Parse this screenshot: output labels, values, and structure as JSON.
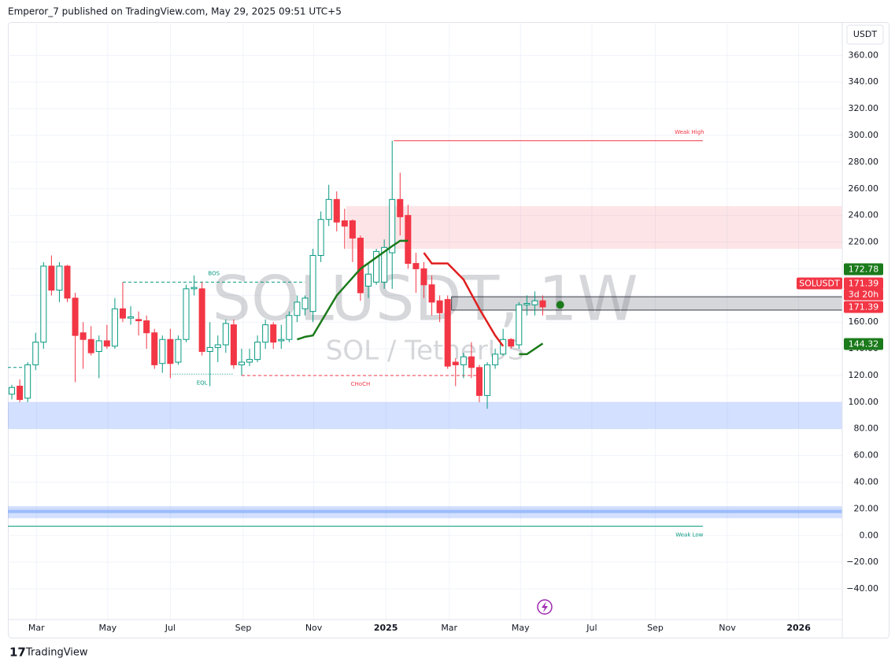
{
  "header": "Emperor_7 published on TradingView.com, May 29, 2025 09:51 UTC+5",
  "footer": "TradingView",
  "chart_data": {
    "type": "candlestick",
    "watermark": "SOLUSDT, 1W",
    "watermark_sub": "SOL / TetherUS",
    "axis_unit": "USDT",
    "up_color": "#089981",
    "down_color": "#f23645",
    "x": [
      0,
      1,
      2,
      3,
      4,
      5,
      6,
      7,
      8,
      9,
      10,
      11,
      12,
      13,
      14,
      15,
      16,
      17,
      18,
      19,
      20,
      21,
      22,
      23,
      24,
      25,
      26,
      27,
      28,
      29,
      30,
      31,
      32,
      33,
      34,
      35,
      36,
      37,
      38,
      39,
      40,
      41,
      42,
      43,
      44,
      45,
      46,
      47,
      48,
      49,
      50,
      51,
      52,
      53,
      54,
      55,
      56,
      57,
      58,
      59,
      60,
      61,
      62,
      63,
      64,
      65,
      66,
      67
    ],
    "open": [
      106,
      112,
      103,
      128,
      145,
      202,
      184,
      202,
      178,
      152,
      147,
      138,
      146,
      142,
      170,
      163,
      162,
      161,
      152,
      129,
      147,
      130,
      147,
      185,
      185,
      138,
      141,
      143,
      158,
      128,
      130,
      132,
      145,
      158,
      146,
      147,
      165,
      170,
      168,
      210,
      237,
      252,
      236,
      236,
      223,
      187,
      190,
      190,
      212,
      252,
      240,
      204,
      200,
      188,
      176,
      177,
      130,
      128,
      134,
      126,
      105,
      128,
      136,
      147,
      143,
      173,
      173,
      176
    ],
    "high": [
      113,
      117,
      130,
      152,
      205,
      210,
      205,
      203,
      182,
      160,
      157,
      150,
      158,
      178,
      190,
      172,
      168,
      165,
      155,
      150,
      155,
      150,
      188,
      195,
      190,
      160,
      150,
      162,
      162,
      140,
      140,
      150,
      162,
      160,
      158,
      168,
      180,
      180,
      215,
      243,
      263,
      258,
      245,
      237,
      225,
      205,
      215,
      222,
      296,
      272,
      248,
      212,
      205,
      195,
      180,
      180,
      133,
      137,
      145,
      128,
      130,
      140,
      155,
      148,
      175,
      180,
      183,
      180
    ],
    "low": [
      102,
      100,
      100,
      124,
      140,
      180,
      175,
      175,
      115,
      125,
      135,
      118,
      140,
      140,
      160,
      158,
      150,
      140,
      125,
      122,
      118,
      128,
      145,
      180,
      135,
      112,
      130,
      137,
      125,
      120,
      127,
      130,
      140,
      140,
      140,
      145,
      160,
      165,
      160,
      205,
      232,
      228,
      215,
      205,
      176,
      178,
      188,
      185,
      185,
      225,
      200,
      182,
      178,
      165,
      160,
      125,
      112,
      118,
      118,
      100,
      95,
      125,
      135,
      140,
      140,
      165,
      165,
      165
    ],
    "close": [
      111,
      102,
      128,
      145,
      202,
      184,
      202,
      178,
      150,
      147,
      137,
      146,
      142,
      170,
      163,
      164,
      161,
      152,
      128,
      147,
      129,
      147,
      185,
      186,
      138,
      141,
      143,
      159,
      128,
      130,
      132,
      145,
      158,
      145,
      147,
      165,
      175,
      178,
      210,
      237,
      252,
      235,
      232,
      223,
      182,
      196,
      213,
      216,
      252,
      239,
      204,
      200,
      188,
      175,
      167,
      127,
      128,
      134,
      126,
      105,
      128,
      136,
      147,
      142,
      173,
      174,
      176,
      171.39
    ],
    "lines": [
      {
        "color": "#1b7a1b",
        "x": [
          36,
          37,
          38,
          41,
          44,
          48,
          49,
          50
        ],
        "values": [
          147,
          149,
          150,
          180,
          200,
          217,
          221,
          221
        ]
      },
      {
        "color": "#1b7a1b",
        "x": [
          64,
          65,
          67
        ],
        "values": [
          136,
          136,
          144
        ]
      },
      {
        "color": "#e01e1e",
        "x": [
          52,
          53,
          55,
          57,
          59,
          61,
          62
        ],
        "values": [
          212,
          204,
          204,
          192,
          170,
          150,
          142
        ]
      }
    ],
    "zones": [
      {
        "color": "rgba(242,54,69,0.13)",
        "x0": 42.2,
        "x1": 104.8,
        "lo": 215,
        "hi": 247
      },
      {
        "color": "rgba(41,98,255,0.2)",
        "x0": -0.5,
        "x1": 104.8,
        "lo": 80,
        "hi": 100
      },
      {
        "color": "rgba(41,98,255,0.2)",
        "x0": -0.5,
        "x1": 104.8,
        "lo": 13,
        "hi": 22
      },
      {
        "color": "rgba(120,123,134,0.3)",
        "x0": 55.5,
        "x1": 104.8,
        "lo": 169,
        "hi": 179
      }
    ],
    "levels": [
      {
        "label": "Weak High",
        "value": 296,
        "x0": 48.2,
        "x1": 87.2,
        "color": "#f23645",
        "style": "solid"
      },
      {
        "label": "Weak Low",
        "value": 7,
        "x0": -0.5,
        "x1": 87.2,
        "color": "#089981",
        "style": "solid"
      },
      {
        "label": "BOS",
        "value": 190,
        "x0": 14,
        "x1": 37,
        "color": "#089981",
        "style": "dashed"
      },
      {
        "label": "CHoCH",
        "value": 120,
        "x0": 29,
        "x1": 59,
        "color": "#f23645",
        "style": "dashed"
      },
      {
        "label": "EQL",
        "value": 121,
        "x0": 20,
        "x1": 28,
        "color": "#089981",
        "style": "dotted"
      },
      {
        "value": 126,
        "x0": -0.5,
        "x1": 2,
        "color": "#089981",
        "style": "dashed"
      },
      {
        "value": 18,
        "x0": -0.5,
        "x1": 104.8,
        "color": "#9bbcf9",
        "style": "thick"
      }
    ],
    "marker": {
      "x": 69.2,
      "value": 173,
      "color": "#1b7a1b"
    },
    "price_tags": [
      {
        "text": "172.78",
        "color": "#1b7a1b"
      },
      {
        "text": "SOLUSDT",
        "color": "#f23645"
      },
      {
        "text": "171.39",
        "color": "#f23645"
      },
      {
        "text": "3d 20h",
        "color": "#f23645"
      },
      {
        "text": "171.39",
        "color": "#f23645"
      },
      {
        "text": "144.32",
        "color": "#1b7a1b"
      }
    ],
    "xlim": [
      -0.5,
      104.8
    ],
    "xticks": [
      {
        "value": 3.1,
        "label": "Mar"
      },
      {
        "value": 12.1,
        "label": "May"
      },
      {
        "value": 20.0,
        "label": "Jul"
      },
      {
        "value": 29.2,
        "label": "Sep"
      },
      {
        "value": 38.1,
        "label": "Nov"
      },
      {
        "value": 47.2,
        "label": "2025"
      },
      {
        "value": 55.2,
        "label": "Mar"
      },
      {
        "value": 64.2,
        "label": "May"
      },
      {
        "value": 73.2,
        "label": "Jul"
      },
      {
        "value": 81.2,
        "label": "Sep"
      },
      {
        "value": 90.3,
        "label": "Nov"
      },
      {
        "value": 99.3,
        "label": "2026"
      }
    ],
    "ylim": [
      -63,
      385
    ],
    "yticks": [
      {
        "value": -40,
        "label": "−40.00"
      },
      {
        "value": -20,
        "label": "−20.00"
      },
      {
        "value": 0,
        "label": "0.00"
      },
      {
        "value": 20,
        "label": "20.00"
      },
      {
        "value": 40,
        "label": "40.00"
      },
      {
        "value": 60,
        "label": "60.00"
      },
      {
        "value": 80,
        "label": "80.00"
      },
      {
        "value": 100,
        "label": "100.00"
      },
      {
        "value": 120,
        "label": "120.00"
      },
      {
        "value": 140,
        "label": "140.00"
      },
      {
        "value": 160,
        "label": "160.00"
      },
      {
        "value": 180,
        "label": "180.00"
      },
      {
        "value": 200,
        "label": "200.00"
      },
      {
        "value": 220,
        "label": "220.00"
      },
      {
        "value": 240,
        "label": "240.00"
      },
      {
        "value": 260,
        "label": "260.00"
      },
      {
        "value": 280,
        "label": "280.00"
      },
      {
        "value": 300,
        "label": "300.00"
      },
      {
        "value": 320,
        "label": "320.00"
      },
      {
        "value": 340,
        "label": "340.00"
      },
      {
        "value": 360,
        "label": "360.00"
      }
    ],
    "grid": true
  }
}
